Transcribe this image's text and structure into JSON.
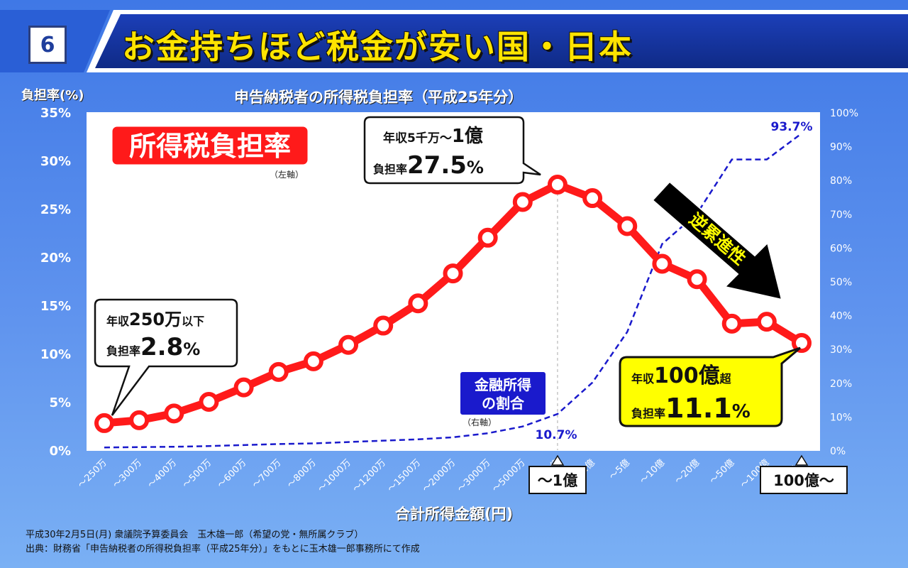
{
  "header": {
    "number": "6",
    "title": "お金持ちほど税金が安い国・日本"
  },
  "left_axis_label": "負担率(%)",
  "x_axis_title": "合計所得金額(円)",
  "footer": {
    "line1": "平成30年2月5日(月) 衆議院予算委員会　玉木雄一郎（希望の党・無所属クラブ）",
    "line2": "出典：財務省「申告納税者の所得税負担率（平成25年分）」をもとに玉木雄一郎事務所にて作成"
  },
  "annotations": {
    "tax_label": "所得税負担率",
    "tax_axis_note": "（左軸）",
    "fin_label_1": "金融所得",
    "fin_label_2": "の割合",
    "fin_axis_note": "（右軸）",
    "callout_low_1a": "年収",
    "callout_low_1b": "250万",
    "callout_low_1c": "以下",
    "callout_low_2a": "負担率",
    "callout_low_2b": "2.8",
    "callout_low_2c": "%",
    "callout_peak_1a": "年収5千万〜",
    "callout_peak_1b": "1億",
    "callout_peak_2a": "負担率",
    "callout_peak_2b": "27.5",
    "callout_peak_2c": "%",
    "callout_top_1a": "年収",
    "callout_top_1b": "100億",
    "callout_top_1c": "超",
    "callout_top_2a": "負担率",
    "callout_top_2b": "11.1",
    "callout_top_2c": "%",
    "reverse_label": "逆累進性",
    "fin_peak_value": "10.7%",
    "fin_top_value": "93.7%",
    "boxed_tick_1": "〜1億",
    "boxed_tick_2": "100億〜"
  },
  "colors": {
    "tax_line": "#ff1a1a",
    "fin_line": "#1a1acc",
    "title_yellow": "#ffe400",
    "callout_yellow": "#ffff00"
  },
  "chart_data": {
    "type": "line",
    "title": "申告納税者の所得税負担率（平成25年分）",
    "xlabel": "合計所得金額(円)",
    "ylabel": "負担率(%)",
    "categories": [
      "〜250万",
      "〜300万",
      "〜400万",
      "〜500万",
      "〜600万",
      "〜700万",
      "〜800万",
      "〜1000万",
      "〜1200万",
      "〜1500万",
      "〜2000万",
      "〜3000万",
      "〜5000万",
      "〜1億",
      "〜2億",
      "〜5億",
      "〜10億",
      "〜20億",
      "〜50億",
      "〜100億",
      "100億〜"
    ],
    "left_axis": {
      "ticks": [
        "0%",
        "5%",
        "10%",
        "15%",
        "20%",
        "25%",
        "30%",
        "35%"
      ],
      "range": [
        0,
        35
      ]
    },
    "right_axis": {
      "ticks": [
        "0%",
        "10%",
        "20%",
        "30%",
        "40%",
        "50%",
        "60%",
        "70%",
        "80%",
        "90%",
        "100%"
      ],
      "range": [
        0,
        100
      ]
    },
    "series": [
      {
        "axis": "left",
        "style": "solid-markers",
        "values": [
          2.8,
          3.1,
          3.8,
          5.0,
          6.5,
          8.1,
          9.2,
          10.9,
          12.9,
          15.2,
          18.3,
          22.0,
          25.7,
          27.5,
          26.1,
          23.2,
          19.3,
          17.7,
          13.1,
          13.3,
          11.1
        ]
      },
      {
        "axis": "right",
        "style": "dashed",
        "values": [
          0.8,
          0.9,
          1.0,
          1.2,
          1.5,
          1.8,
          2.0,
          2.4,
          2.8,
          3.2,
          3.8,
          5.0,
          7.0,
          10.7,
          20.0,
          35.0,
          61.0,
          70.0,
          86.0,
          86.0,
          93.7
        ]
      }
    ],
    "grid": false,
    "legend": "none"
  }
}
